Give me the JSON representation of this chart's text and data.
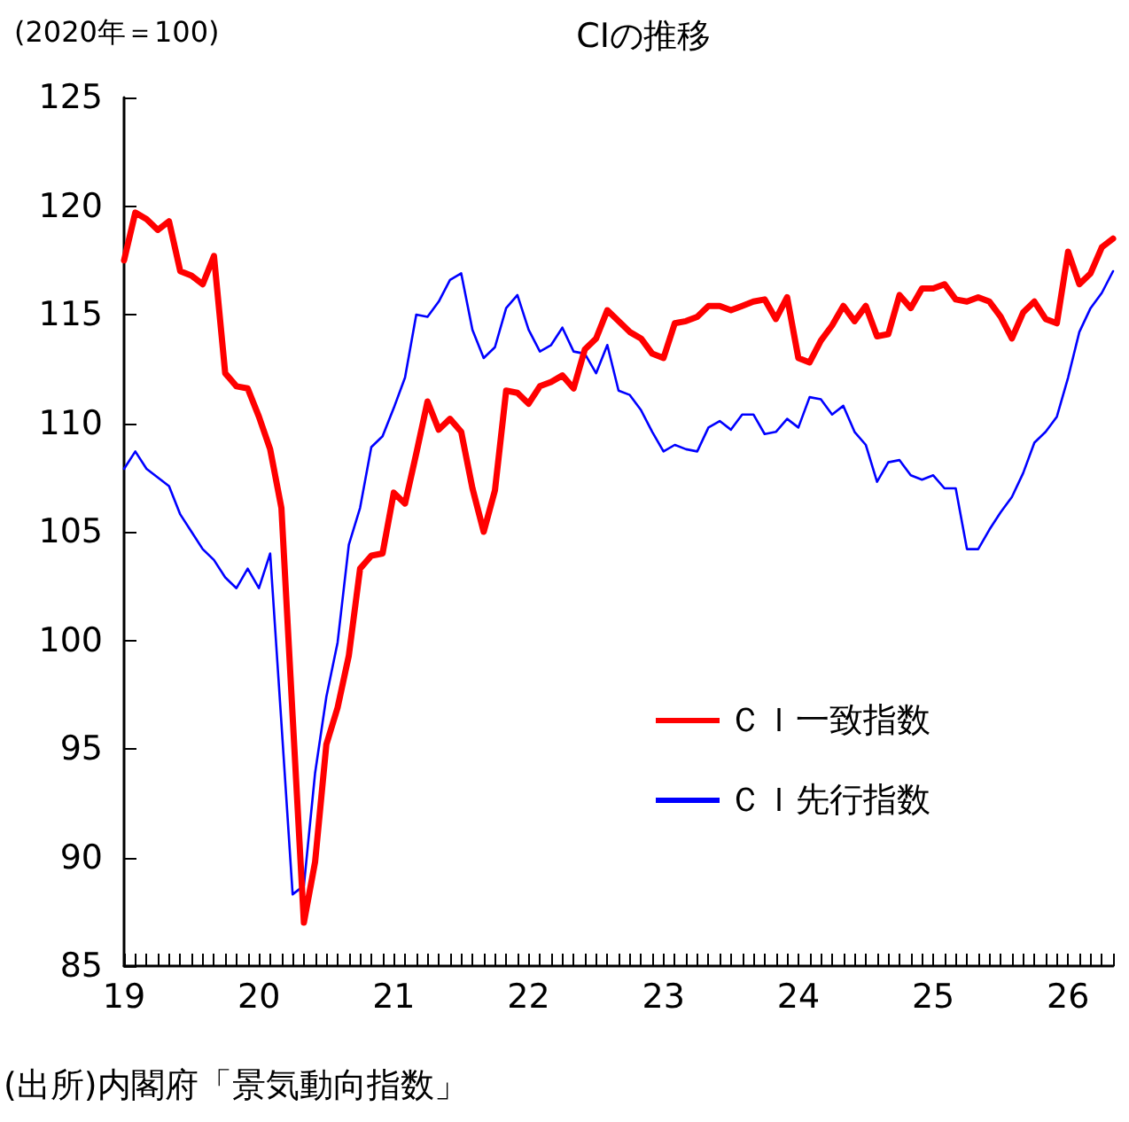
{
  "chart_data": {
    "type": "line",
    "title": "CIの推移",
    "ylabel": "(2020年＝100)",
    "annotations": [
      "(出所)内閣府「景気動向指数」"
    ],
    "categories": [
      "19",
      null,
      null,
      null,
      null,
      null,
      null,
      null,
      null,
      null,
      null,
      null,
      "20",
      null,
      null,
      null,
      null,
      null,
      null,
      null,
      null,
      null,
      null,
      null,
      "21",
      null,
      null,
      null,
      null,
      null,
      null,
      null,
      null,
      null,
      null,
      null,
      "22",
      null,
      null,
      null,
      null,
      null,
      null,
      null,
      null,
      null,
      null,
      null,
      "23",
      null,
      null,
      null,
      null,
      null,
      null,
      null,
      null,
      null,
      null,
      null,
      "24",
      null,
      null,
      null,
      null,
      null,
      null,
      null,
      null,
      null,
      null,
      null,
      "25",
      null,
      null,
      null,
      null,
      null,
      null,
      null,
      null,
      null,
      null,
      null,
      "26",
      null,
      null,
      null,
      null
    ],
    "series": [
      {
        "name": "ＣＩ一致指数",
        "color": "#ff0000",
        "values": [
          117.5,
          119.7,
          119.4,
          118.9,
          119.3,
          117.0,
          116.8,
          116.4,
          117.7,
          112.3,
          111.7,
          111.6,
          110.3,
          108.8,
          106.1,
          96.5,
          87.0,
          89.8,
          95.2,
          96.9,
          99.3,
          103.3,
          103.9,
          104.0,
          106.8,
          106.3,
          108.6,
          111.0,
          109.7,
          110.2,
          109.6,
          107.0,
          105.0,
          106.9,
          111.5,
          111.4,
          110.9,
          111.7,
          111.9,
          112.2,
          111.6,
          113.4,
          113.9,
          115.2,
          114.7,
          114.2,
          113.9,
          113.2,
          113.0,
          114.6,
          114.7,
          114.9,
          115.4,
          115.4,
          115.2,
          115.4,
          115.6,
          115.7,
          114.8,
          115.8,
          113.0,
          112.8,
          113.8,
          114.5,
          115.4,
          114.7,
          115.4,
          114.0,
          114.1,
          115.9,
          115.3,
          116.2,
          116.2,
          116.4,
          115.7,
          115.6,
          115.8,
          115.6,
          114.9,
          113.9,
          115.1,
          115.6,
          114.8,
          114.6,
          117.9,
          116.4,
          116.9,
          118.1,
          118.5
        ]
      },
      {
        "name": "ＣＩ先行指数",
        "color": "#0000ff",
        "values": [
          107.9,
          108.7,
          107.9,
          107.5,
          107.1,
          105.8,
          105.0,
          104.2,
          103.7,
          102.9,
          102.4,
          103.3,
          102.4,
          104.0,
          96.2,
          88.3,
          88.7,
          93.9,
          97.4,
          99.9,
          104.4,
          106.1,
          108.9,
          109.4,
          110.7,
          112.1,
          115.0,
          114.9,
          115.6,
          116.6,
          116.9,
          114.3,
          113.0,
          113.5,
          115.3,
          115.9,
          114.3,
          113.3,
          113.6,
          114.4,
          113.3,
          113.2,
          112.3,
          113.6,
          111.5,
          111.3,
          110.6,
          109.6,
          108.7,
          109.0,
          108.8,
          108.7,
          109.8,
          110.1,
          109.7,
          110.4,
          110.4,
          109.5,
          109.6,
          110.2,
          109.8,
          111.2,
          111.1,
          110.4,
          110.8,
          109.6,
          109.0,
          107.3,
          108.2,
          108.3,
          107.6,
          107.4,
          107.6,
          107.0,
          107.0,
          104.2,
          104.2,
          105.1,
          105.9,
          106.6,
          107.7,
          109.1,
          109.6,
          110.3,
          112.1,
          114.2,
          115.3,
          116.0,
          117.0
        ]
      }
    ],
    "ylim": [
      85,
      125
    ],
    "yticks": [
      85,
      90,
      95,
      100,
      105,
      110,
      115,
      120,
      125
    ],
    "grid": false,
    "legend": "bottom right",
    "marker": "none",
    "line_style": "solid"
  }
}
